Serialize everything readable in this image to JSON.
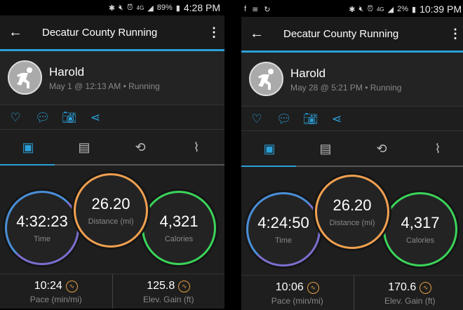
{
  "screens": [
    {
      "status": {
        "left_icons": [],
        "battery": "89%",
        "time": "4:28 PM"
      },
      "title": "Decatur County Running",
      "user": "Harold",
      "meta": "May 1 @ 12:13 AM • Running",
      "time": "4:32:23",
      "time_label": "Time",
      "distance": "26.20",
      "distance_label": "Distance (mi)",
      "calories": "4,321",
      "calories_label": "Calories",
      "pace": "10:24",
      "pace_label": "Pace (min/mi)",
      "elev": "125.8",
      "elev_label": "Elev. Gain (ft)"
    },
    {
      "status": {
        "left_icons": [
          "facebook-icon",
          "wifi-icon",
          "sync-icon"
        ],
        "battery": "2%",
        "time": "10:39 PM"
      },
      "title": "Decatur County Running",
      "user": "Harold",
      "meta": "May 28 @ 5:21 PM • Running",
      "time": "4:24:50",
      "time_label": "Time",
      "distance": "26.20",
      "distance_label": "Distance (mi)",
      "calories": "4,317",
      "calories_label": "Calories",
      "pace": "10:06",
      "pace_label": "Pace (min/mi)",
      "elev": "170.6",
      "elev_label": "Elev. Gain (ft)"
    }
  ],
  "colors": {
    "accent": "#2b9fd8",
    "time_ring": "#7a6fcf",
    "distance_ring": "#f0a050",
    "calories_ring": "#3ad45a"
  }
}
